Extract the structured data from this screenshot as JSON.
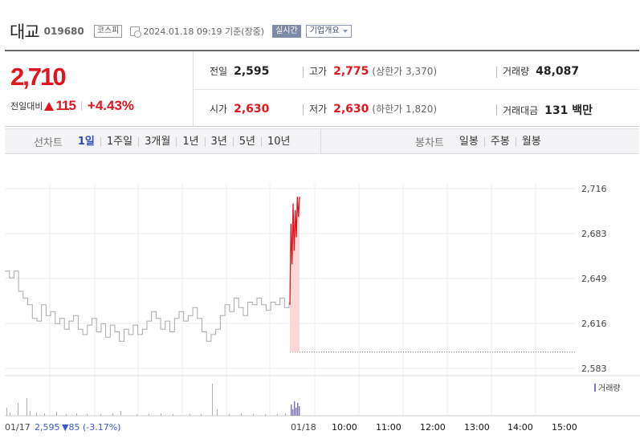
{
  "header": {
    "name": "대교",
    "code": "019680",
    "market": "코스피",
    "timestamp": "2024.01.18 09:19 기준(장중)",
    "realtime_label": "실시간",
    "company_info_label": "기업개요"
  },
  "quote": {
    "price": "2,710",
    "change_label": "전일대비",
    "change": "115",
    "change_pct": "+4.43%",
    "prev_close_label": "전일",
    "prev_close": "2,595",
    "high_label": "고가",
    "high": "2,775",
    "upper_limit": "(상한가 3,370)",
    "volume_label": "거래량",
    "volume": "48,087",
    "open_label": "시가",
    "open": "2,630",
    "low_label": "저가",
    "low": "2,630",
    "lower_limit": "(하한가 1,820)",
    "amount_label": "거래대금",
    "amount": "131 백만"
  },
  "toolbar": {
    "line_label": "선차트",
    "line_items": [
      "1일",
      "1주일",
      "3개월",
      "1년",
      "3년",
      "5년",
      "10년"
    ],
    "selected": "1일",
    "candle_label": "봉차트",
    "candle_items": [
      "일봉",
      "주봉",
      "월봉"
    ]
  },
  "colors": {
    "up": "#e0151e",
    "selected_tab": "#2b4cb5",
    "prev_day_line": "#aaaaaa",
    "volume_today": "#7a73b8"
  },
  "chart_data": {
    "type": "line",
    "ylim": [
      2583,
      2716
    ],
    "y_ticks": [
      "2,716",
      "2,683",
      "2,649",
      "2,616",
      "2,583"
    ],
    "x_ticks": [
      "01/18",
      "10:00",
      "11:00",
      "12:00",
      "13:00",
      "14:00",
      "15:00"
    ],
    "prev_day_label": "01/17",
    "prev_day_close": "2,595",
    "prev_day_change": "▼85 (-3.17%)",
    "volume_legend": "거래량",
    "series": [
      {
        "values": [
          2655,
          2650,
          2655,
          2640,
          2635,
          2630,
          2620,
          2618,
          2630,
          2622,
          2625,
          2616,
          2620,
          2612,
          2618,
          2622,
          2612,
          2608,
          2615,
          2620,
          2610,
          2616,
          2606,
          2615,
          2610,
          2603,
          2612,
          2608,
          2615,
          2608,
          2612,
          2618,
          2625,
          2620,
          2612,
          2618,
          2610,
          2620,
          2625,
          2618,
          2622,
          2628,
          2620,
          2610,
          2603,
          2608,
          2612,
          2622,
          2630,
          2625,
          2635,
          2628,
          2622,
          2632,
          2630,
          2635,
          2630,
          2626,
          2632,
          2630,
          2635,
          2628,
          2632
        ]
      },
      {
        "values": [
          2630,
          2690,
          2660,
          2705,
          2670,
          2700,
          2680,
          2710,
          2695,
          2710
        ]
      }
    ]
  }
}
